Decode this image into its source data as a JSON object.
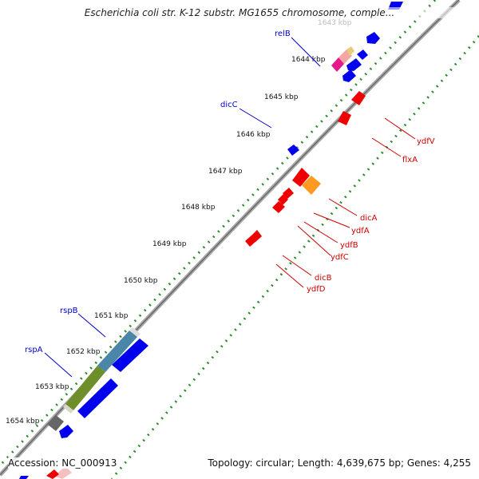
{
  "title": "Escherichia coli str. K-12 substr. MG1655 chromosome, comple...",
  "footer": {
    "accession": "Accession: NC_000913",
    "summary": "Topology: circular; Length: 4,639,675 bp; Genes: 4,255"
  },
  "colors": {
    "backbone": "#8c8c8c",
    "tick_dots": "#2e8b2e",
    "forward_gene": "#0000ee",
    "reverse_gene": "#ee0000",
    "label_forward": "#0000cc",
    "label_reverse": "#cc0000"
  },
  "ticks": [
    "1643 kbp",
    "1644 kbp",
    "1645 kbp",
    "1646 kbp",
    "1647 kbp",
    "1648 kbp",
    "1649 kbp",
    "1650 kbp",
    "1651 kbp",
    "1652 kbp",
    "1653 kbp",
    "1654 kbp"
  ],
  "forward_labels": [
    "relB",
    "dicC",
    "rspB",
    "rspA"
  ],
  "reverse_labels": [
    "ydfV",
    "flxA",
    "dicA",
    "ydfA",
    "ydfB",
    "ydfC",
    "dicB",
    "ydfD"
  ]
}
